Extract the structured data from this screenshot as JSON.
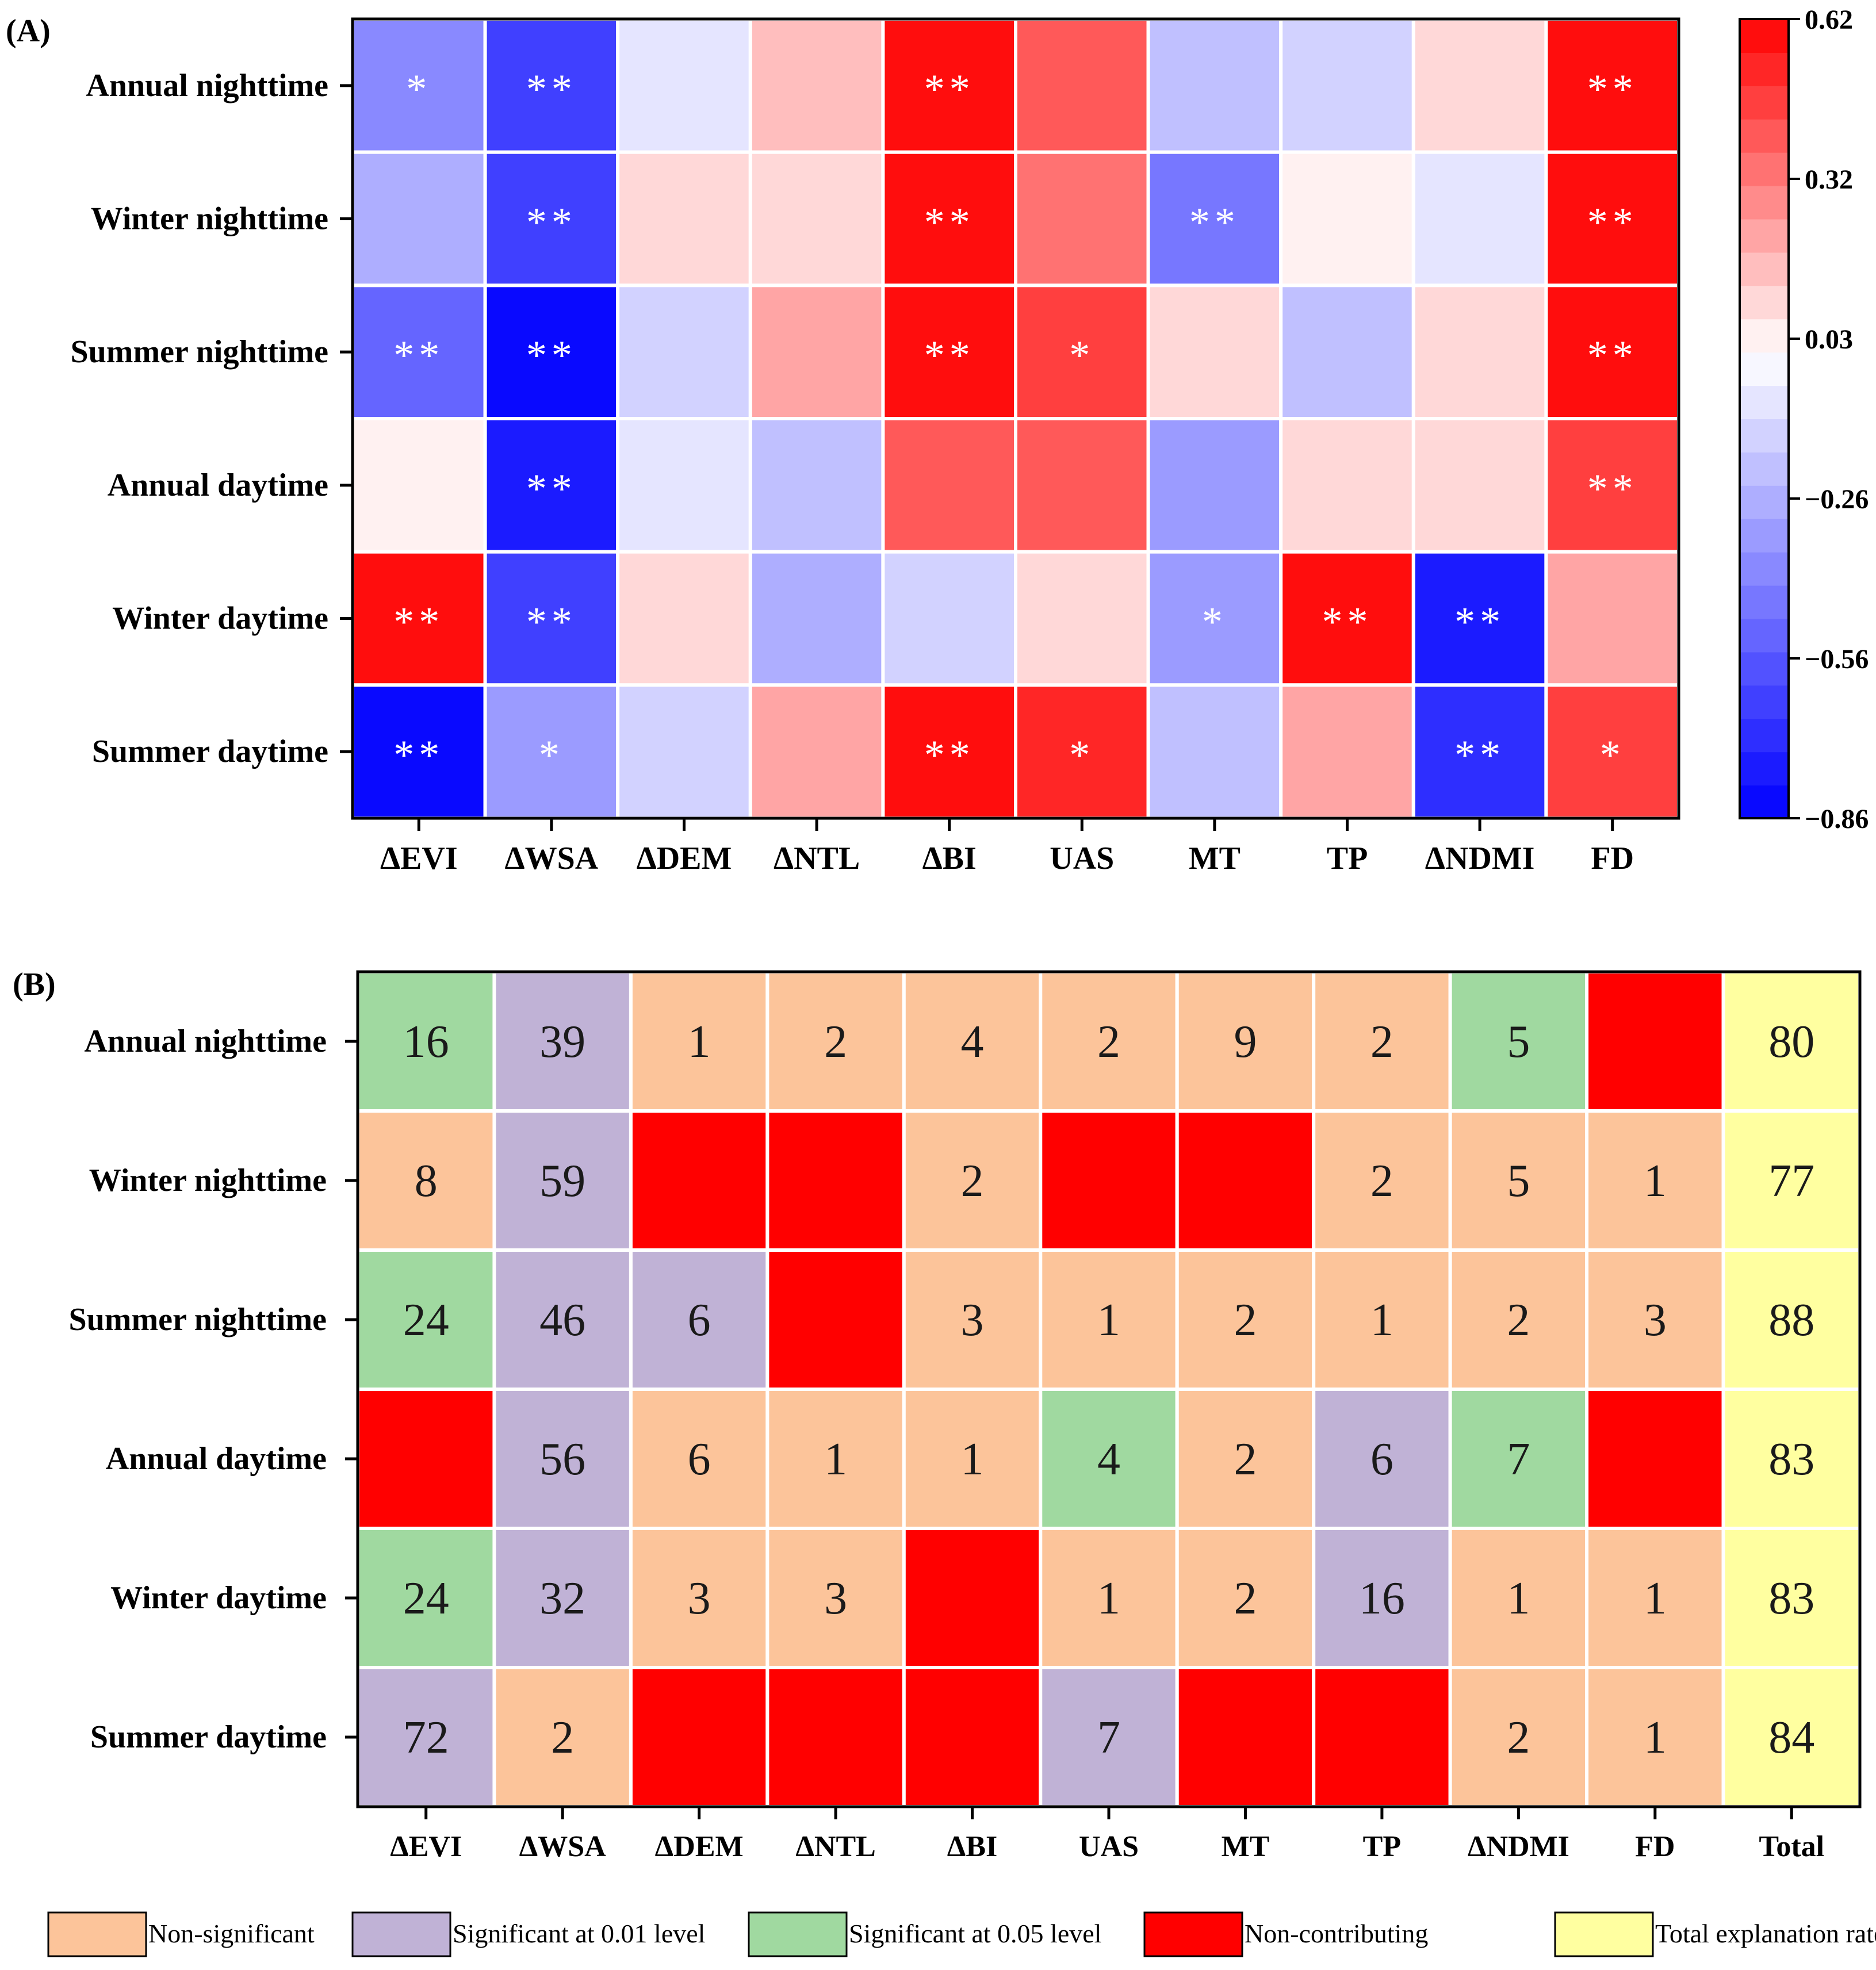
{
  "chart_data": [
    {
      "panel_label": "(A)",
      "type": "heatmap",
      "rows": [
        "Annual nighttime",
        "Winter nighttime",
        "Summer nighttime",
        "Annual daytime",
        "Winter daytime",
        "Summer daytime"
      ],
      "columns": [
        "ΔEVI",
        "ΔWSA",
        "ΔDEM",
        "ΔNTL",
        "ΔBI",
        "UAS",
        "MT",
        "TP",
        "ΔNDMI",
        "FD"
      ],
      "values": [
        [
          -0.38,
          -0.66,
          -0.09,
          0.14,
          0.62,
          0.4,
          -0.2,
          -0.14,
          0.11,
          0.62
        ],
        [
          -0.28,
          -0.63,
          0.07,
          0.12,
          0.62,
          0.36,
          -0.49,
          0.06,
          -0.1,
          0.62
        ],
        [
          -0.54,
          -0.81,
          -0.18,
          0.19,
          0.62,
          0.49,
          0.08,
          -0.24,
          0.07,
          0.62
        ],
        [
          0.05,
          -0.78,
          -0.09,
          -0.22,
          0.42,
          0.42,
          -0.34,
          0.09,
          0.07,
          0.45
        ],
        [
          0.62,
          -0.66,
          0.09,
          -0.29,
          -0.15,
          0.08,
          -0.33,
          0.57,
          -0.75,
          0.19
        ],
        [
          -0.86,
          -0.33,
          -0.16,
          0.24,
          0.62,
          0.52,
          -0.2,
          0.24,
          -0.72,
          0.49
        ]
      ],
      "significance": [
        [
          "*",
          "**",
          "",
          "",
          "**",
          "",
          "",
          "",
          "",
          "**"
        ],
        [
          "",
          "**",
          "",
          "",
          "**",
          "",
          "**",
          "",
          "",
          "**"
        ],
        [
          "**",
          "**",
          "",
          "",
          "**",
          "*",
          "",
          "",
          "",
          "**"
        ],
        [
          "",
          "**",
          "",
          "",
          "",
          "",
          "",
          "",
          "",
          "**"
        ],
        [
          "**",
          "**",
          "",
          "",
          "",
          "",
          "*",
          "**",
          "**",
          ""
        ],
        [
          "**",
          "*",
          "",
          "",
          "**",
          "*",
          "",
          "",
          "**",
          "*"
        ]
      ],
      "colorbar": {
        "min": -0.86,
        "max": 0.62,
        "ticks": [
          "0.62",
          "0.32",
          "0.03",
          "−0.26",
          "−0.56",
          "−0.86"
        ],
        "low_color": "#0000ff",
        "mid_color": "#ffffff",
        "high_color": "#ff0000"
      }
    },
    {
      "panel_label": "(B)",
      "type": "table",
      "rows": [
        "Annual nighttime",
        "Winter nighttime",
        "Summer nighttime",
        "Annual daytime",
        "Winter daytime",
        "Summer daytime"
      ],
      "columns": [
        "ΔEVI",
        "ΔWSA",
        "ΔDEM",
        "ΔNTL",
        "ΔBI",
        "UAS",
        "MT",
        "TP",
        "ΔNDMI",
        "FD",
        "Total"
      ],
      "values": [
        [
          "16",
          "39",
          "1",
          "2",
          "4",
          "2",
          "9",
          "2",
          "5",
          "",
          "80"
        ],
        [
          "8",
          "59",
          "",
          "",
          "2",
          "",
          "",
          "2",
          "5",
          "1",
          "77"
        ],
        [
          "24",
          "46",
          "6",
          "",
          "3",
          "1",
          "2",
          "1",
          "2",
          "3",
          "88"
        ],
        [
          "",
          "56",
          "6",
          "1",
          "1",
          "4",
          "2",
          "6",
          "7",
          "",
          "83"
        ],
        [
          "24",
          "32",
          "3",
          "3",
          "",
          "1",
          "2",
          "16",
          "1",
          "1",
          "83"
        ],
        [
          "72",
          "2",
          "",
          "",
          "",
          "7",
          "",
          "",
          "2",
          "1",
          "84"
        ]
      ],
      "categories": [
        [
          "g",
          "p",
          "o",
          "o",
          "o",
          "o",
          "o",
          "o",
          "g",
          "r",
          "y"
        ],
        [
          "o",
          "p",
          "r",
          "r",
          "o",
          "r",
          "r",
          "o",
          "o",
          "o",
          "y"
        ],
        [
          "g",
          "p",
          "p",
          "r",
          "o",
          "o",
          "o",
          "o",
          "o",
          "o",
          "y"
        ],
        [
          "r",
          "p",
          "o",
          "o",
          "o",
          "g",
          "o",
          "p",
          "g",
          "r",
          "y"
        ],
        [
          "g",
          "p",
          "o",
          "o",
          "r",
          "o",
          "o",
          "p",
          "o",
          "o",
          "y"
        ],
        [
          "p",
          "o",
          "r",
          "r",
          "r",
          "p",
          "r",
          "r",
          "o",
          "o",
          "y"
        ]
      ],
      "legend": [
        {
          "key": "o",
          "label": "Non-significant",
          "color": "#fcc49a"
        },
        {
          "key": "p",
          "label": "Significant at 0.01 level",
          "color": "#c0b2d6"
        },
        {
          "key": "g",
          "label": "Significant at 0.05 level",
          "color": "#a0d9a0"
        },
        {
          "key": "r",
          "label": "Non-contributing",
          "color": "#ff0000"
        },
        {
          "key": "y",
          "label": "Total explanation rate(%)",
          "color": "#ffffa0"
        }
      ]
    }
  ]
}
